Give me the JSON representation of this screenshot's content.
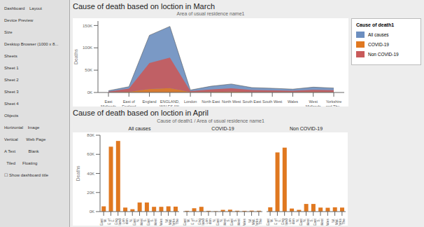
{
  "chart_data": [
    {
      "type": "area",
      "title": "Cause of death based on loction in March",
      "subtitle": "Area of usual residence name1",
      "annotations": [
        "Dashboard    Layout",
        "Device Preview",
        "Size",
        "Desktop Browser (1000 x 8...",
        "Sheets",
        "Sheet 1",
        "Sheet 2",
        "Sheet 3",
        "Sheet 4",
        "Objects",
        "Horizontal    Image",
        "Vertical       Web Page",
        "A Text           Blank",
        "  Tiled      Floating",
        "☐ Show dashboard title"
      ],
      "categories": [
        "East\nMidlands",
        "East of\nEngland",
        "England",
        "ENGLAND,\nWALES AN.",
        "London",
        "North East",
        "North West",
        "South East",
        "South West",
        "Wales",
        "West\nMidlands",
        "Yorkshire\nand The.."
      ],
      "series": [
        {
          "name": "All causes",
          "color": "#6C8EBF",
          "values": [
            4000,
            13000,
            128000,
            148000,
            5500,
            14000,
            19000,
            11000,
            9500,
            7500,
            12000,
            10000
          ]
        },
        {
          "name": "COVID-19",
          "color": "#E07820",
          "values": [
            300,
            1500,
            8000,
            10000,
            800,
            1000,
            1800,
            900,
            700,
            600,
            1000,
            800
          ],
          "stacked": true
        },
        {
          "name": "Non COVID-19",
          "color": "#C85A5A",
          "values": [
            1800,
            7000,
            58000,
            68000,
            2200,
            5500,
            7500,
            4500,
            4000,
            3200,
            4800,
            4200
          ],
          "stacked": true
        }
      ],
      "ylabel": "Deaths",
      "ylim": [
        0,
        160000
      ],
      "yticks": [
        {
          "value": 0,
          "label": "0K"
        },
        {
          "value": 50000,
          "label": "50K"
        },
        {
          "value": 100000,
          "label": "100K"
        },
        {
          "value": 150000,
          "label": "150K"
        }
      ],
      "legend": "right",
      "legend_title": "Cause of death1",
      "grid": false
    },
    {
      "type": "bar",
      "title": "Cause of death based on loction in April",
      "subtitle": "Cause of death1 / Area of usual residence name1",
      "categories": [
        "East\nM.",
        "E of\nE.",
        "Eng\nland",
        "Lon\ndon",
        "N.\nEast",
        "N.\nWest",
        "S.\nEast",
        "S.\nWest",
        "Wales",
        "W.\nMid.",
        "Yorks\n& The"
      ],
      "series": [
        {
          "name": "All causes",
          "color": "#E07820",
          "values": [
            5500,
            68000,
            74000,
            4200,
            2500,
            9500,
            9500,
            5000,
            5000,
            5500,
            5200
          ]
        },
        {
          "name": "COVID-19",
          "color": "#E07820",
          "values": [
            800,
            3500,
            5000,
            800,
            400,
            1800,
            2000,
            900,
            800,
            1000,
            900
          ]
        },
        {
          "name": "Non COVID-19",
          "color": "#E07820",
          "values": [
            4500,
            62000,
            67000,
            3200,
            1800,
            8000,
            8000,
            4200,
            4000,
            4500,
            4200
          ]
        }
      ],
      "ylabel": "Deaths",
      "ylim": [
        0,
        80000
      ],
      "yticks": [
        {
          "value": 0,
          "label": "0K"
        },
        {
          "value": 20000,
          "label": "20K"
        },
        {
          "value": 40000,
          "label": "40K"
        },
        {
          "value": 60000,
          "label": "60K"
        },
        {
          "value": 80000,
          "label": "80K"
        }
      ],
      "grid": false
    }
  ]
}
